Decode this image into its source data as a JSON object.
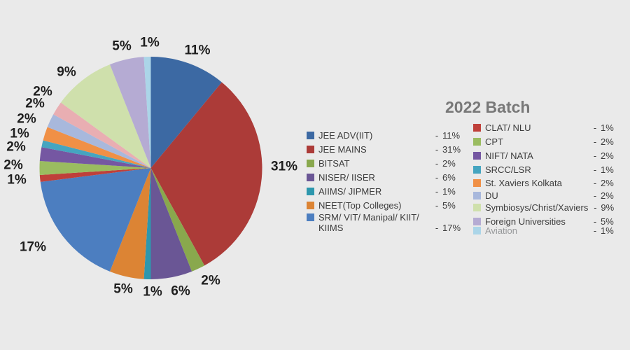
{
  "chart_data": {
    "type": "pie",
    "title": "2022 Batch",
    "title_color": "#787878",
    "background_color": "#EAEAEA",
    "value_unit": "percent",
    "start_angle_deg": 0,
    "direction": "clockwise",
    "legend_separator": "-",
    "legend_position": "right, two columns",
    "slices": [
      {
        "label": "JEE ADV(IIT)",
        "value": 11,
        "pct_label": "11%",
        "color": "#3C69A3",
        "legend_column": 1
      },
      {
        "label": "JEE MAINS",
        "value": 31,
        "pct_label": "31%",
        "color": "#AC3B38",
        "legend_column": 1
      },
      {
        "label": "BITSAT",
        "value": 2,
        "pct_label": "2%",
        "color": "#89A84D",
        "legend_column": 1
      },
      {
        "label": "NISER/ IISER",
        "value": 6,
        "pct_label": "6%",
        "color": "#6A5695",
        "legend_column": 1
      },
      {
        "label": "AIIMS/ JIPMER",
        "value": 1,
        "pct_label": "1%",
        "color": "#2D97AD",
        "legend_column": 1
      },
      {
        "label": "NEET(Top Colleges)",
        "value": 5,
        "pct_label": "5%",
        "color": "#DC8434",
        "legend_column": 1
      },
      {
        "label": "SRM/ VIT/ Manipal/ KIIT/ KIIMS",
        "value": 17,
        "pct_label": "17%",
        "color": "#4C7EC0",
        "legend_column": 1
      },
      {
        "label": "CLAT/ NLU",
        "value": 1,
        "pct_label": "1%",
        "color": "#BF403A",
        "legend_column": 2
      },
      {
        "label": "CPT",
        "value": 2,
        "pct_label": "2%",
        "color": "#9ABC60",
        "legend_column": 2
      },
      {
        "label": "NIFT/ NATA",
        "value": 2,
        "pct_label": "2%",
        "color": "#7557A2",
        "legend_column": 2
      },
      {
        "label": "SRCC/LSR",
        "value": 1,
        "pct_label": "1%",
        "color": "#45A5C0",
        "legend_column": 2
      },
      {
        "label": "St. Xaviers Kolkata",
        "value": 2,
        "pct_label": "2%",
        "color": "#F09046",
        "legend_column": 2
      },
      {
        "label": "DU",
        "value": 2,
        "pct_label": "2%",
        "color": "#A8B8DC",
        "legend_column": 2
      },
      {
        "label": "",
        "value": 2,
        "pct_label": "2%",
        "color": "#E9AEB2",
        "legend_column": 0
      },
      {
        "label": "Symbiosys/Christ/Xaviers",
        "value": 9,
        "pct_label": "9%",
        "color": "#CFE0AC",
        "legend_column": 2
      },
      {
        "label": "Foreign Universities",
        "value": 5,
        "pct_label": "5%",
        "color": "#B5ABD3",
        "legend_column": 2
      },
      {
        "label": "Aviation",
        "value": 1,
        "pct_label": "1%",
        "color": "#ABD5E8",
        "legend_column": 2,
        "muted": true
      }
    ]
  }
}
